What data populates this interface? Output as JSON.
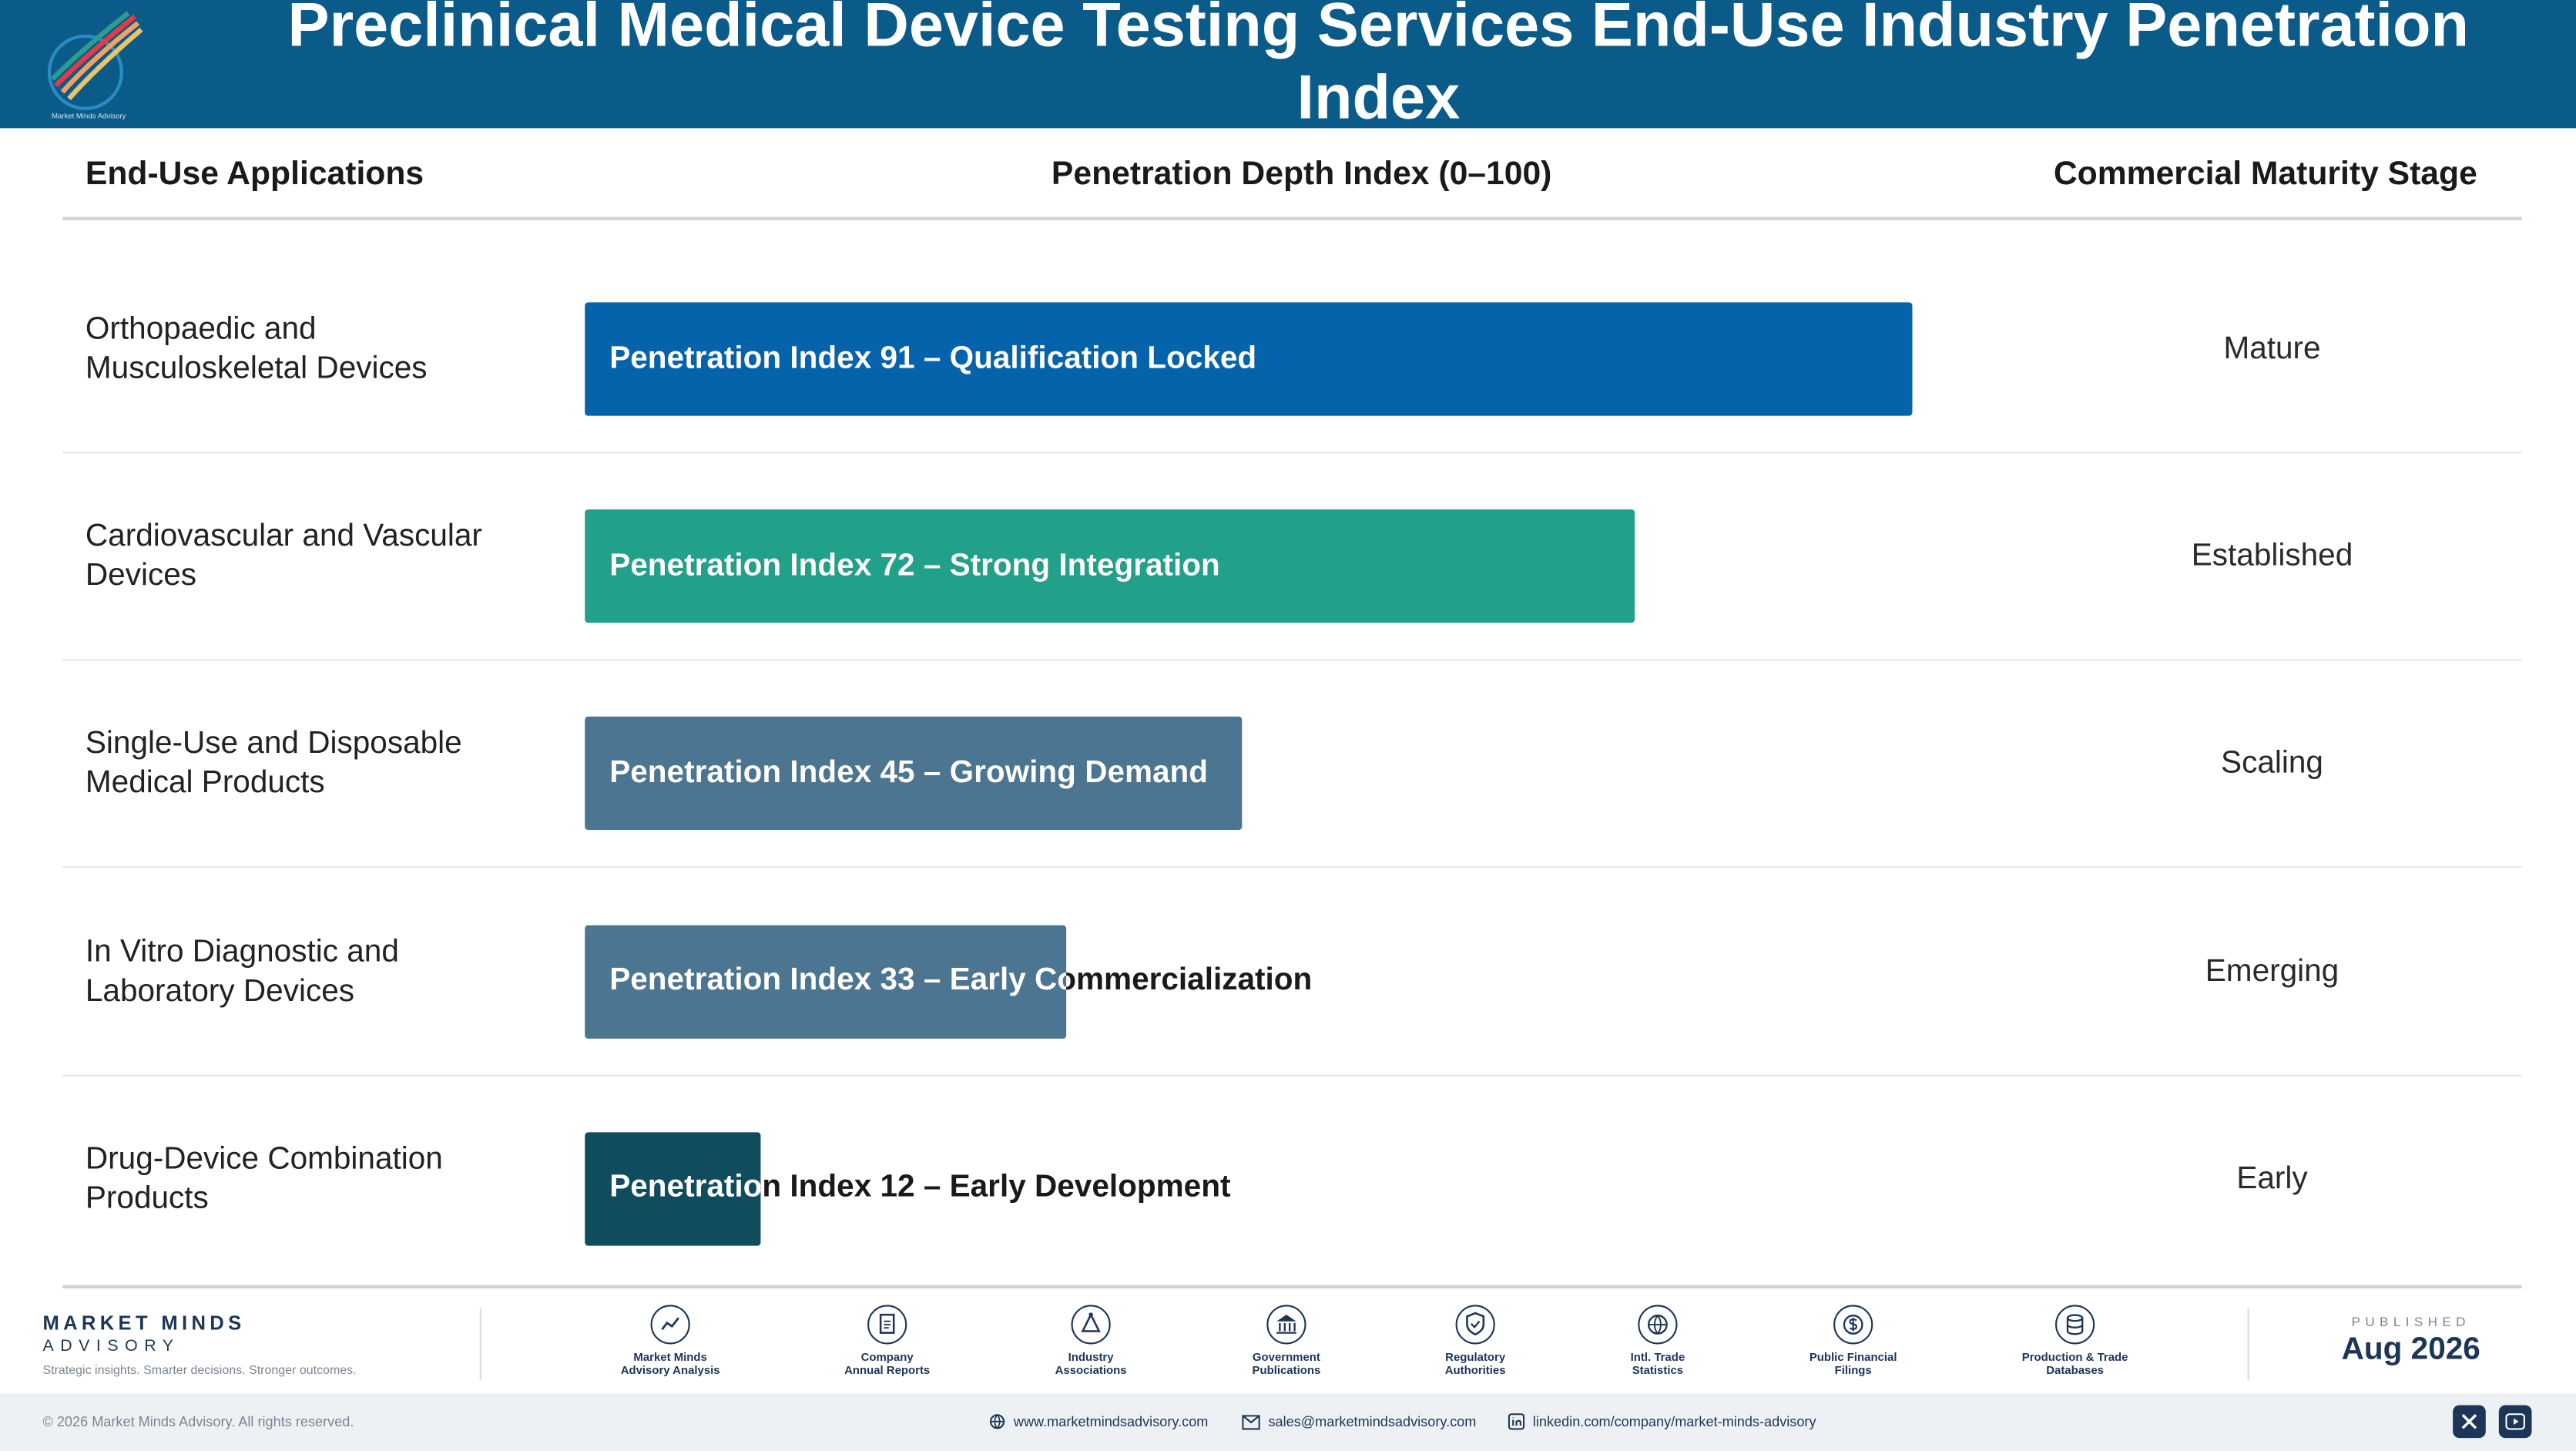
{
  "header": {
    "title": "Preclinical Medical Device Testing Services End-Use Industry Penetration Index"
  },
  "columns": {
    "applications": "End-Use Applications",
    "depth": "Penetration Depth Index (0–100)",
    "stage": "Commercial Maturity Stage"
  },
  "chart_data": {
    "type": "bar",
    "orientation": "horizontal",
    "title": "Preclinical Medical Device Testing Services End-Use Industry Penetration Index",
    "xlabel": "Penetration Depth Index (0–100)",
    "xlim": [
      0,
      100
    ],
    "categories": [
      "Orthopaedic and Musculoskeletal Devices",
      "Cardiovascular and Vascular Devices",
      "Single-Use and Disposable Medical Products",
      "In Vitro Diagnostic and Laboratory Devices",
      "Drug-Device Combination Products"
    ],
    "values": [
      91,
      72,
      45,
      33,
      12
    ],
    "bar_labels": [
      "Penetration Index 91 – Qualification Locked",
      "Penetration Index 72 – Strong Integration",
      "Penetration Index 45 – Growing Demand",
      "Penetration Index 33 – Early Commercialization",
      "Penetration Index 12 – Early Development"
    ],
    "stages": [
      "Mature",
      "Established",
      "Scaling",
      "Emerging",
      "Early"
    ],
    "colors": [
      "#0563ab",
      "#21a08a",
      "#4b7591",
      "#4b7591",
      "#0f4d5e"
    ]
  },
  "footer": {
    "brand_name": "MARKET MINDS",
    "brand_sub": "ADVISORY",
    "tagline": "Strategic insights. Smarter decisions. Stronger outcomes.",
    "sources": [
      {
        "line1": "Market Minds",
        "line2": "Advisory Analysis",
        "icon": "trend-chart-icon"
      },
      {
        "line1": "Company",
        "line2": "Annual Reports",
        "icon": "document-icon"
      },
      {
        "line1": "Industry",
        "line2": "Associations",
        "icon": "network-icon"
      },
      {
        "line1": "Government",
        "line2": "Publications",
        "icon": "government-building-icon"
      },
      {
        "line1": "Regulatory",
        "line2": "Authorities",
        "icon": "shield-check-icon"
      },
      {
        "line1": "Intl. Trade",
        "line2": "Statistics",
        "icon": "globe-icon"
      },
      {
        "line1": "Public Financial",
        "line2": "Filings",
        "icon": "dollar-coin-icon"
      },
      {
        "line1": "Production & Trade",
        "line2": "Databases",
        "icon": "database-icon"
      }
    ],
    "published_label": "PUBLISHED",
    "published_date": "Aug 2026",
    "copyright": "© 2026 Market Minds Advisory. All rights reserved.",
    "website": "www.marketmindsadvisory.com",
    "email": "sales@marketmindsadvisory.com",
    "linkedin": "linkedin.com/company/market-minds-advisory",
    "logo_text": "Market Minds Advisory"
  }
}
